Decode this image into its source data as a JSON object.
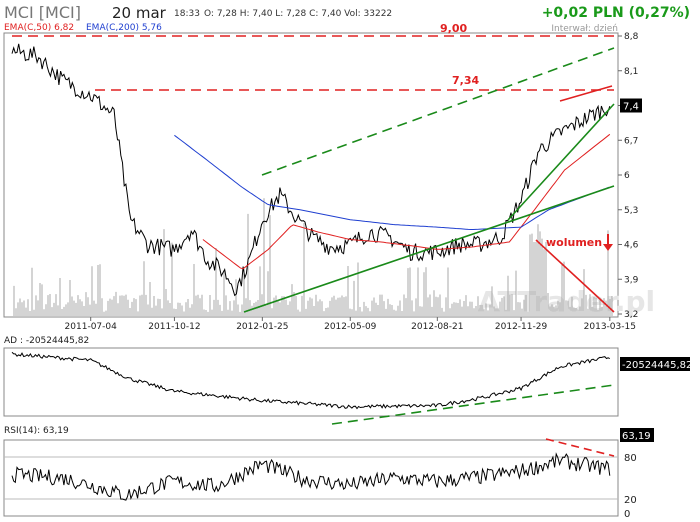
{
  "header": {
    "ticker": "MCI [MCI]",
    "date": "20 mar",
    "time": "18:33",
    "ohlc": "O: 7,28  H: 7,40  L: 7,28  C: 7,40  Vol: 33222",
    "change": "+0,02 PLN (0,27%)",
    "interval": "Interwał: dzień"
  },
  "colors": {
    "price": "#000000",
    "ema50": "#e02020",
    "ema200": "#1f3fd0",
    "trend_green": "#1a8a1a",
    "resistance_red": "#e02020",
    "volume": "#a8a8a8",
    "change_green": "#1a9a1a"
  },
  "watermark": "ATTrader.pl",
  "chart_data": [
    {
      "type": "line",
      "title": "",
      "legend": [
        "EMA(C,50) 6,82",
        "EMA(C,200) 5,76"
      ],
      "x_ticks": [
        "2011-07-04",
        "2011-10-12",
        "2012-01-25",
        "2012-05-09",
        "2012-08-21",
        "2012-11-29",
        "2013-03-15"
      ],
      "y_ticks": [
        "8,8",
        "8,1",
        "7,4",
        "6,7",
        "6",
        "5,3",
        "4,6",
        "3,9",
        "3,2"
      ],
      "ylim": [
        3.2,
        8.8
      ],
      "last_value_label": "7,4",
      "series": [
        {
          "name": "MCI",
          "color": "#000000",
          "x": [
            "2011-04-01",
            "2011-05-01",
            "2011-06-01",
            "2011-07-04",
            "2011-08-01",
            "2011-08-20",
            "2011-09-10",
            "2011-10-12",
            "2011-11-01",
            "2011-11-20",
            "2011-12-10",
            "2011-12-25",
            "2012-01-10",
            "2012-01-25",
            "2012-02-15",
            "2012-03-05",
            "2012-03-25",
            "2012-04-15",
            "2012-05-09",
            "2012-06-01",
            "2012-06-25",
            "2012-07-20",
            "2012-08-21",
            "2012-09-15",
            "2012-10-10",
            "2012-11-05",
            "2012-11-29",
            "2012-12-20",
            "2013-01-15",
            "2013-02-10",
            "2013-03-15"
          ],
          "values": [
            8.5,
            8.4,
            7.9,
            7.6,
            7.2,
            5.1,
            4.6,
            4.5,
            4.9,
            4.3,
            4.05,
            3.7,
            4.3,
            5.1,
            5.6,
            5.15,
            4.75,
            4.55,
            4.6,
            4.85,
            4.75,
            4.45,
            4.45,
            4.6,
            4.6,
            4.75,
            5.5,
            6.5,
            6.85,
            7.1,
            7.4
          ]
        },
        {
          "name": "EMA(C,50)",
          "color": "#e02020",
          "x": [
            "2011-11-15",
            "2012-01-01",
            "2012-02-01",
            "2012-03-01",
            "2012-04-01",
            "2012-05-09",
            "2012-06-15",
            "2012-08-01",
            "2012-08-21",
            "2012-10-01",
            "2012-11-15",
            "2012-12-15",
            "2013-01-20",
            "2013-03-15"
          ],
          "values": [
            4.7,
            4.1,
            4.5,
            5.0,
            4.85,
            4.7,
            4.65,
            4.55,
            4.5,
            4.55,
            4.65,
            5.3,
            6.1,
            6.82
          ]
        },
        {
          "name": "EMA(C,200)",
          "color": "#1f3fd0",
          "x": [
            "2011-10-12",
            "2011-11-20",
            "2012-01-01",
            "2012-02-01",
            "2012-03-10",
            "2012-05-09",
            "2012-07-01",
            "2012-08-21",
            "2012-10-01",
            "2012-11-29",
            "2013-01-01",
            "2013-03-15"
          ],
          "values": [
            6.8,
            6.3,
            5.75,
            5.4,
            5.3,
            5.1,
            5.0,
            4.95,
            4.9,
            4.95,
            5.3,
            5.76
          ]
        }
      ],
      "annotations": [
        {
          "label": "9,00",
          "type": "resistance",
          "value": 9.0
        },
        {
          "label": "7,34",
          "type": "resistance",
          "value": 7.34
        },
        {
          "label": "wolumen",
          "type": "note"
        }
      ]
    },
    {
      "type": "line",
      "title": "AD : -20524445,82",
      "last_value_label": "-20524445,82",
      "series": [
        {
          "name": "AD",
          "x": [
            "2011-04-01",
            "2011-07-04",
            "2011-08-20",
            "2011-10-12",
            "2012-01-25",
            "2012-05-09",
            "2012-08-21",
            "2012-10-15",
            "2012-11-29",
            "2013-01-15",
            "2013-03-15"
          ],
          "values": [
            0.95,
            0.85,
            0.55,
            0.35,
            0.2,
            0.1,
            0.12,
            0.25,
            0.4,
            0.75,
            0.9
          ]
        }
      ]
    },
    {
      "type": "line",
      "title": "RSI(14): 63,19",
      "y_ticks": [
        "80",
        "20",
        "0"
      ],
      "ylim": [
        0,
        100
      ],
      "last_value_label": "63,19",
      "series": [
        {
          "name": "RSI(14)",
          "x": [
            "2011-04-01",
            "2011-06-01",
            "2011-07-04",
            "2011-08-15",
            "2011-09-10",
            "2011-10-12",
            "2011-12-01",
            "2012-01-25",
            "2012-03-15",
            "2012-05-09",
            "2012-07-01",
            "2012-08-21",
            "2012-10-15",
            "2012-11-29",
            "2013-01-15",
            "2013-02-15",
            "2013-03-15"
          ],
          "values": [
            55,
            50,
            40,
            25,
            35,
            45,
            38,
            70,
            48,
            40,
            50,
            45,
            52,
            60,
            75,
            68,
            63.19
          ]
        }
      ]
    }
  ]
}
